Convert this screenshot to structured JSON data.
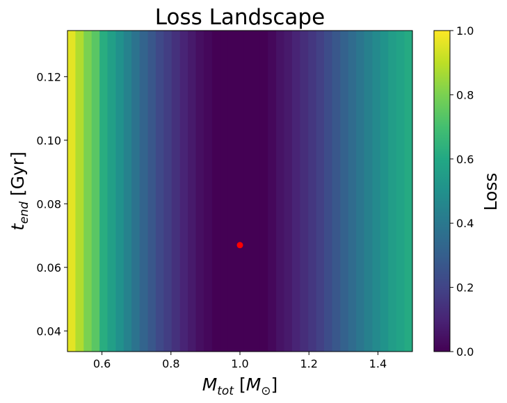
{
  "chart_data": {
    "type": "heatmap",
    "title": "Loss Landscape",
    "xlabel": "M_tot [M_⊙]",
    "ylabel": "t_end [Gyr]",
    "xlabel_parts": {
      "main": "M",
      "sub": "tot",
      "unit_open": "[",
      "unit_main": "M",
      "unit_sub": "⊙",
      "unit_close": "]"
    },
    "ylabel_parts": {
      "main": "t",
      "sub": "end",
      "unit": "[Gyr]"
    },
    "colorbar_label": "Loss",
    "colormap": "viridis",
    "xlim": [
      0.5,
      1.5
    ],
    "ylim": [
      0.0335,
      0.1345
    ],
    "clim": [
      0.0,
      1.0
    ],
    "x_ticks": [
      0.6,
      0.8,
      1.0,
      1.2,
      1.4
    ],
    "x_tick_labels": [
      "0.6",
      "0.8",
      "1.0",
      "1.2",
      "1.4"
    ],
    "y_ticks": [
      0.04,
      0.06,
      0.08,
      0.1,
      0.12
    ],
    "y_tick_labels": [
      "0.04",
      "0.06",
      "0.08",
      "0.10",
      "0.12"
    ],
    "cbar_ticks": [
      0.0,
      0.2,
      0.4,
      0.6,
      0.8,
      1.0
    ],
    "cbar_tick_labels": [
      "0.0",
      "0.2",
      "0.4",
      "0.6",
      "0.8",
      "1.0"
    ],
    "x_bin_edges": [
      0.5,
      0.523,
      0.547,
      0.57,
      0.593,
      0.616,
      0.64,
      0.663,
      0.686,
      0.709,
      0.733,
      0.756,
      0.779,
      0.802,
      0.826,
      0.849,
      0.872,
      0.895,
      0.919,
      0.942,
      0.965,
      0.988,
      1.012,
      1.035,
      1.058,
      1.081,
      1.105,
      1.128,
      1.151,
      1.174,
      1.198,
      1.221,
      1.244,
      1.267,
      1.291,
      1.314,
      1.337,
      1.36,
      1.384,
      1.407,
      1.43,
      1.453,
      1.477,
      1.5
    ],
    "loss_values": [
      0.96,
      0.88,
      0.8,
      0.74,
      0.62,
      0.56,
      0.5,
      0.44,
      0.38,
      0.32,
      0.27,
      0.22,
      0.18,
      0.14,
      0.1,
      0.07,
      0.04,
      0.02,
      0.0,
      0.0,
      0.0,
      0.0,
      0.0,
      0.0,
      0.0,
      0.02,
      0.05,
      0.07,
      0.1,
      0.13,
      0.16,
      0.19,
      0.23,
      0.27,
      0.31,
      0.35,
      0.39,
      0.43,
      0.47,
      0.51,
      0.55,
      0.58,
      0.61
    ],
    "marker": {
      "x": 1.0,
      "y": 0.067,
      "color": "#ff0000"
    }
  }
}
